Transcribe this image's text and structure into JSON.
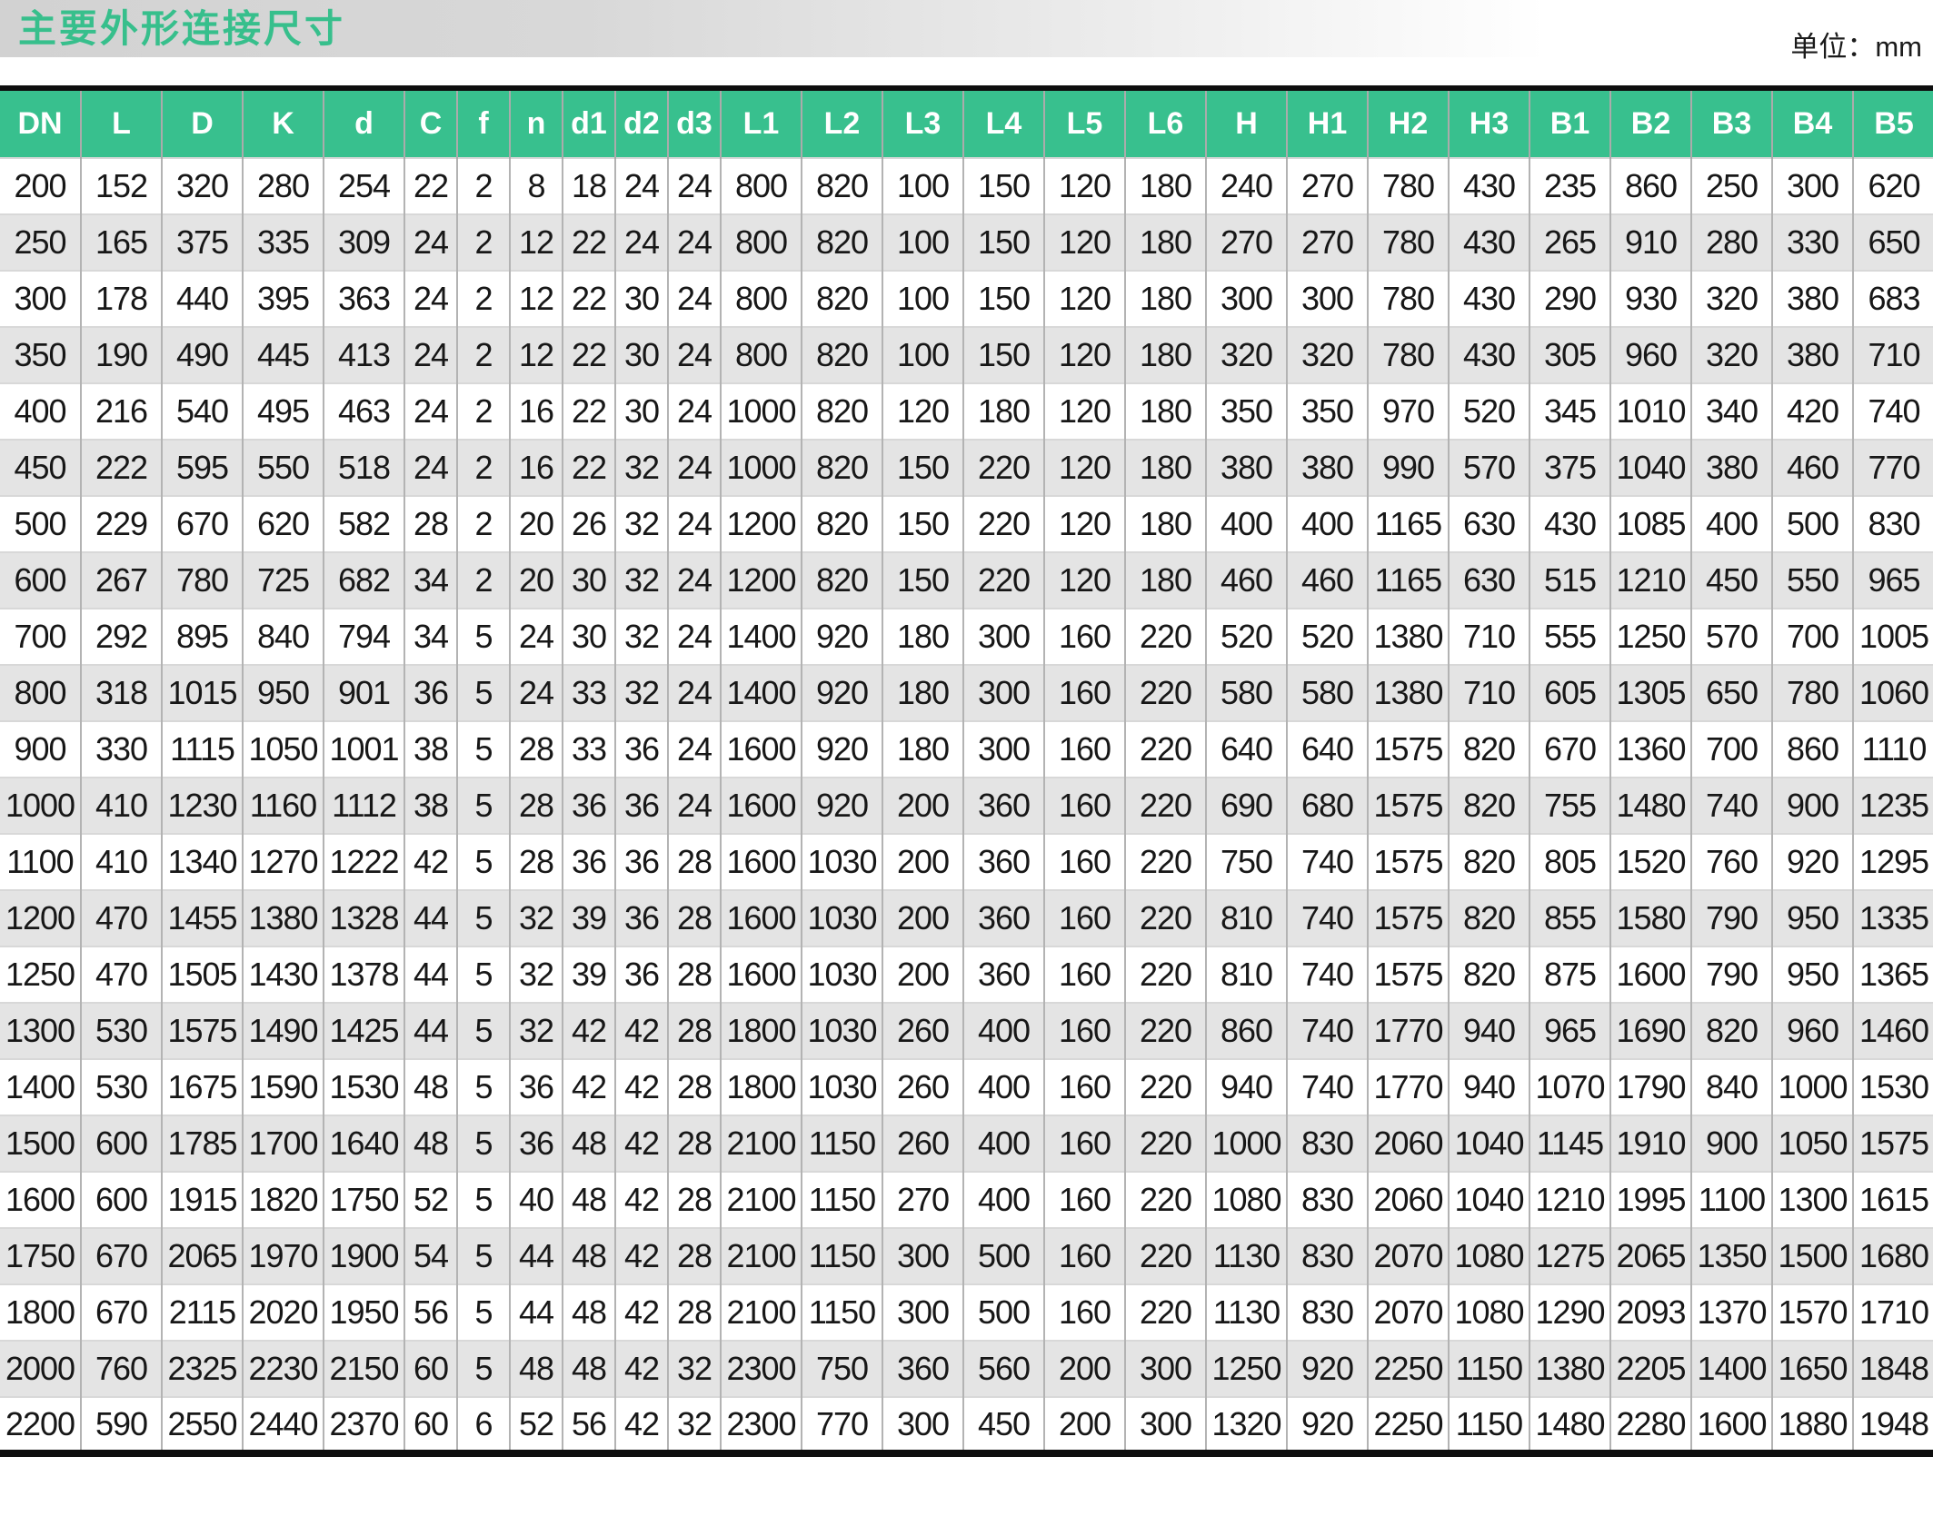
{
  "page": {
    "title": "主要外形连接尺寸",
    "unit_label": "单位：mm"
  },
  "colors": {
    "header_green": "#38c08e",
    "title_green": "#37bf8c",
    "row_alt_gray": "#e4e4e4",
    "grid_gray": "#b3b3b3",
    "border_black": "#0e0e0e"
  },
  "table": {
    "columns": [
      "DN",
      "L",
      "D",
      "K",
      "d",
      "C",
      "f",
      "n",
      "d1",
      "d2",
      "d3",
      "L1",
      "L2",
      "L3",
      "L4",
      "L5",
      "L6",
      "H",
      "H1",
      "H2",
      "H3",
      "B1",
      "B2",
      "B3",
      "B4",
      "B5"
    ],
    "narrow_columns": [
      "C",
      "f",
      "n",
      "d1",
      "d2",
      "d3"
    ],
    "rows": [
      [
        200,
        152,
        320,
        280,
        254,
        22,
        2,
        8,
        18,
        24,
        24,
        800,
        820,
        100,
        150,
        120,
        180,
        240,
        270,
        780,
        430,
        235,
        860,
        250,
        300,
        620
      ],
      [
        250,
        165,
        375,
        335,
        309,
        24,
        2,
        12,
        22,
        24,
        24,
        800,
        820,
        100,
        150,
        120,
        180,
        270,
        270,
        780,
        430,
        265,
        910,
        280,
        330,
        650
      ],
      [
        300,
        178,
        440,
        395,
        363,
        24,
        2,
        12,
        22,
        30,
        24,
        800,
        820,
        100,
        150,
        120,
        180,
        300,
        300,
        780,
        430,
        290,
        930,
        320,
        380,
        683
      ],
      [
        350,
        190,
        490,
        445,
        413,
        24,
        2,
        12,
        22,
        30,
        24,
        800,
        820,
        100,
        150,
        120,
        180,
        320,
        320,
        780,
        430,
        305,
        960,
        320,
        380,
        710
      ],
      [
        400,
        216,
        540,
        495,
        463,
        24,
        2,
        16,
        22,
        30,
        24,
        1000,
        820,
        120,
        180,
        120,
        180,
        350,
        350,
        970,
        520,
        345,
        1010,
        340,
        420,
        740
      ],
      [
        450,
        222,
        595,
        550,
        518,
        24,
        2,
        16,
        22,
        32,
        24,
        1000,
        820,
        150,
        220,
        120,
        180,
        380,
        380,
        990,
        570,
        375,
        1040,
        380,
        460,
        770
      ],
      [
        500,
        229,
        670,
        620,
        582,
        28,
        2,
        20,
        26,
        32,
        24,
        1200,
        820,
        150,
        220,
        120,
        180,
        400,
        400,
        1165,
        630,
        430,
        1085,
        400,
        500,
        830
      ],
      [
        600,
        267,
        780,
        725,
        682,
        34,
        2,
        20,
        30,
        32,
        24,
        1200,
        820,
        150,
        220,
        120,
        180,
        460,
        460,
        1165,
        630,
        515,
        1210,
        450,
        550,
        965
      ],
      [
        700,
        292,
        895,
        840,
        794,
        34,
        5,
        24,
        30,
        32,
        24,
        1400,
        920,
        180,
        300,
        160,
        220,
        520,
        520,
        1380,
        710,
        555,
        1250,
        570,
        700,
        1005
      ],
      [
        800,
        318,
        1015,
        950,
        901,
        36,
        5,
        24,
        33,
        32,
        24,
        1400,
        920,
        180,
        300,
        160,
        220,
        580,
        580,
        1380,
        710,
        605,
        1305,
        650,
        780,
        1060
      ],
      [
        900,
        330,
        1115,
        1050,
        1001,
        38,
        5,
        28,
        33,
        36,
        24,
        1600,
        920,
        180,
        300,
        160,
        220,
        640,
        640,
        1575,
        820,
        670,
        1360,
        700,
        860,
        1110
      ],
      [
        1000,
        410,
        1230,
        1160,
        1112,
        38,
        5,
        28,
        36,
        36,
        24,
        1600,
        920,
        200,
        360,
        160,
        220,
        690,
        680,
        1575,
        820,
        755,
        1480,
        740,
        900,
        1235
      ],
      [
        1100,
        410,
        1340,
        1270,
        1222,
        42,
        5,
        28,
        36,
        36,
        28,
        1600,
        1030,
        200,
        360,
        160,
        220,
        750,
        740,
        1575,
        820,
        805,
        1520,
        760,
        920,
        1295
      ],
      [
        1200,
        470,
        1455,
        1380,
        1328,
        44,
        5,
        32,
        39,
        36,
        28,
        1600,
        1030,
        200,
        360,
        160,
        220,
        810,
        740,
        1575,
        820,
        855,
        1580,
        790,
        950,
        1335
      ],
      [
        1250,
        470,
        1505,
        1430,
        1378,
        44,
        5,
        32,
        39,
        36,
        28,
        1600,
        1030,
        200,
        360,
        160,
        220,
        810,
        740,
        1575,
        820,
        875,
        1600,
        790,
        950,
        1365
      ],
      [
        1300,
        530,
        1575,
        1490,
        1425,
        44,
        5,
        32,
        42,
        42,
        28,
        1800,
        1030,
        260,
        400,
        160,
        220,
        860,
        740,
        1770,
        940,
        965,
        1690,
        820,
        960,
        1460
      ],
      [
        1400,
        530,
        1675,
        1590,
        1530,
        48,
        5,
        36,
        42,
        42,
        28,
        1800,
        1030,
        260,
        400,
        160,
        220,
        940,
        740,
        1770,
        940,
        1070,
        1790,
        840,
        1000,
        1530
      ],
      [
        1500,
        600,
        1785,
        1700,
        1640,
        48,
        5,
        36,
        48,
        42,
        28,
        2100,
        1150,
        260,
        400,
        160,
        220,
        1000,
        830,
        2060,
        1040,
        1145,
        1910,
        900,
        1050,
        1575
      ],
      [
        1600,
        600,
        1915,
        1820,
        1750,
        52,
        5,
        40,
        48,
        42,
        28,
        2100,
        1150,
        270,
        400,
        160,
        220,
        1080,
        830,
        2060,
        1040,
        1210,
        1995,
        1100,
        1300,
        1615
      ],
      [
        1750,
        670,
        2065,
        1970,
        1900,
        54,
        5,
        44,
        48,
        42,
        28,
        2100,
        1150,
        300,
        500,
        160,
        220,
        1130,
        830,
        2070,
        1080,
        1275,
        2065,
        1350,
        1500,
        1680
      ],
      [
        1800,
        670,
        2115,
        2020,
        1950,
        56,
        5,
        44,
        48,
        42,
        28,
        2100,
        1150,
        300,
        500,
        160,
        220,
        1130,
        830,
        2070,
        1080,
        1290,
        2093,
        1370,
        1570,
        1710
      ],
      [
        2000,
        760,
        2325,
        2230,
        2150,
        60,
        5,
        48,
        48,
        42,
        32,
        2300,
        750,
        360,
        560,
        200,
        300,
        1250,
        920,
        2250,
        1150,
        1380,
        2205,
        1400,
        1650,
        1848
      ],
      [
        2200,
        590,
        2550,
        2440,
        2370,
        60,
        6,
        52,
        56,
        42,
        32,
        2300,
        770,
        300,
        450,
        200,
        300,
        1320,
        920,
        2250,
        1150,
        1480,
        2280,
        1600,
        1880,
        1948
      ]
    ]
  }
}
